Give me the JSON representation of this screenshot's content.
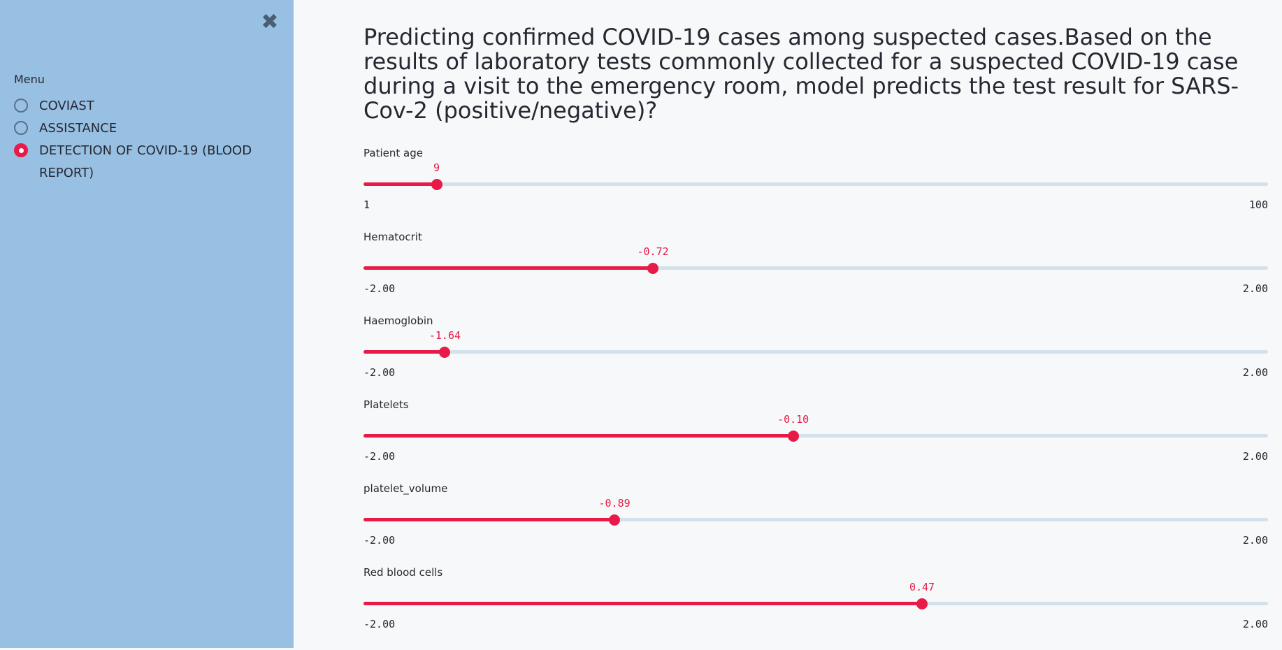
{
  "sidebar": {
    "menu_label": "Menu",
    "close_icon": "close-icon",
    "options": [
      {
        "label": "COVIAST",
        "selected": false
      },
      {
        "label": "ASSISTANCE",
        "selected": false
      },
      {
        "label": "DETECTION OF COVID-19 (BLOOD REPORT)",
        "selected": true
      }
    ]
  },
  "main": {
    "title": "Predicting confirmed COVID-19 cases among suspected cases.Based on the results of laboratory tests commonly collected for a suspected COVID-19 case during a visit to the emergency room, model predicts the test result for SARS-Cov-2 (positive/negative)?",
    "sliders": [
      {
        "label": "Patient age",
        "value": 9,
        "value_text": "9",
        "min": 1,
        "max": 100,
        "min_text": "1",
        "max_text": "100"
      },
      {
        "label": "Hematocrit",
        "value": -0.72,
        "value_text": "-0.72",
        "min": -2,
        "max": 2,
        "min_text": "-2.00",
        "max_text": "2.00"
      },
      {
        "label": "Haemoglobin",
        "value": -1.64,
        "value_text": "-1.64",
        "min": -2,
        "max": 2,
        "min_text": "-2.00",
        "max_text": "2.00"
      },
      {
        "label": "Platelets",
        "value": -0.1,
        "value_text": "-0.10",
        "min": -2,
        "max": 2,
        "min_text": "-2.00",
        "max_text": "2.00"
      },
      {
        "label": "platelet_volume",
        "value": -0.89,
        "value_text": "-0.89",
        "min": -2,
        "max": 2,
        "min_text": "-2.00",
        "max_text": "2.00"
      },
      {
        "label": "Red blood cells",
        "value": 0.47,
        "value_text": "0.47",
        "min": -2,
        "max": 2,
        "min_text": "-2.00",
        "max_text": "2.00"
      }
    ]
  },
  "colors": {
    "sidebar_bg": "#97c0e3",
    "accent": "#e81a47",
    "track": "#d3e1ec",
    "page_bg": "#f7f8f9"
  }
}
